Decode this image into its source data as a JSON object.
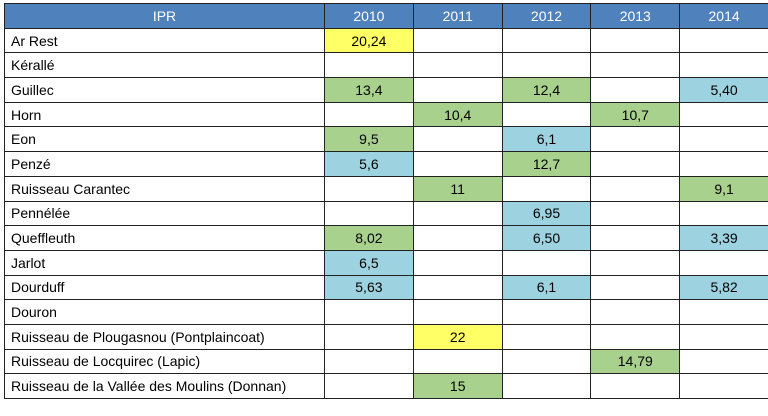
{
  "table": {
    "columns": [
      "IPR",
      "2010",
      "2011",
      "2012",
      "2013",
      "2014"
    ],
    "rows": [
      {
        "name": "Ar Rest",
        "values": [
          "20,24",
          "",
          "",
          "",
          ""
        ],
        "fills": [
          "yellow",
          "",
          "",
          "",
          ""
        ]
      },
      {
        "name": "Kérallé",
        "values": [
          "",
          "",
          "",
          "",
          ""
        ],
        "fills": [
          "",
          "",
          "",
          "",
          ""
        ]
      },
      {
        "name": "Guillec",
        "values": [
          "13,4",
          "",
          "12,4",
          "",
          "5,40"
        ],
        "fills": [
          "green",
          "",
          "green",
          "",
          "blue"
        ]
      },
      {
        "name": "Horn",
        "values": [
          "",
          "10,4",
          "",
          "10,7",
          ""
        ],
        "fills": [
          "",
          "green",
          "",
          "green",
          ""
        ]
      },
      {
        "name": "Eon",
        "values": [
          "9,5",
          "",
          "6,1",
          "",
          ""
        ],
        "fills": [
          "green",
          "",
          "blue",
          "",
          ""
        ]
      },
      {
        "name": "Penzé",
        "values": [
          "5,6",
          "",
          "12,7",
          "",
          ""
        ],
        "fills": [
          "blue",
          "",
          "green",
          "",
          ""
        ]
      },
      {
        "name": "Ruisseau  Carantec",
        "values": [
          "",
          "11",
          "",
          "",
          "9,1"
        ],
        "fills": [
          "",
          "green",
          "",
          "",
          "green"
        ]
      },
      {
        "name": "Pennélée",
        "values": [
          "",
          "",
          "6,95",
          "",
          ""
        ],
        "fills": [
          "",
          "",
          "blue",
          "",
          ""
        ]
      },
      {
        "name": "Queffleuth",
        "values": [
          "8,02",
          "",
          "6,50",
          "",
          "3,39"
        ],
        "fills": [
          "green",
          "",
          "blue",
          "",
          "blue"
        ]
      },
      {
        "name": "Jarlot",
        "values": [
          "6,5",
          "",
          "",
          "",
          ""
        ],
        "fills": [
          "blue",
          "",
          "",
          "",
          ""
        ]
      },
      {
        "name": "Dourduff",
        "values": [
          "5,63",
          "",
          "6,1",
          "",
          "5,82"
        ],
        "fills": [
          "blue",
          "",
          "blue",
          "",
          "blue"
        ]
      },
      {
        "name": "Douron",
        "values": [
          "",
          "",
          "",
          "",
          ""
        ],
        "fills": [
          "",
          "",
          "",
          "",
          ""
        ]
      },
      {
        "name": "Ruisseau de Plougasnou (Pontplaincoat)",
        "values": [
          "",
          "22",
          "",
          "",
          ""
        ],
        "fills": [
          "",
          "yellow",
          "",
          "",
          ""
        ]
      },
      {
        "name": "Ruisseau de Locquirec (Lapic)",
        "values": [
          "",
          "",
          "",
          "14,79",
          ""
        ],
        "fills": [
          "",
          "",
          "",
          "green",
          ""
        ]
      },
      {
        "name": "Ruisseau de la Vallée des Moulins (Donnan)",
        "values": [
          "",
          "15",
          "",
          "",
          ""
        ],
        "fills": [
          "",
          "green",
          "",
          "",
          ""
        ]
      }
    ]
  },
  "colors": {
    "header_bg": "#4f81bd",
    "yellow": "#ffff66",
    "green": "#a9d18e",
    "blue": "#9dd3e0"
  }
}
